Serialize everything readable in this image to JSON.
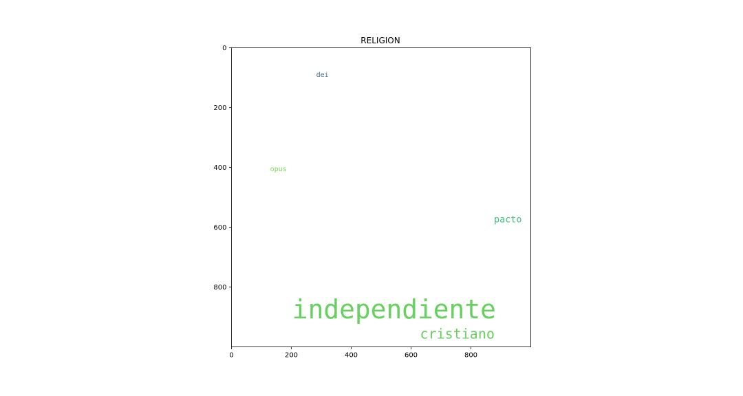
{
  "chart_data": {
    "type": "wordcloud",
    "title": "RELIGION",
    "xlabel": "",
    "ylabel": "",
    "xlim": [
      0,
      1000
    ],
    "ylim": [
      1000,
      0
    ],
    "y_inverted": true,
    "grid": false,
    "x_ticks": [
      0,
      200,
      400,
      600,
      800
    ],
    "y_ticks": [
      0,
      200,
      400,
      600,
      800
    ],
    "words": [
      {
        "text": "dei",
        "x": 283,
        "y": 83,
        "size": 23,
        "color": "#3b6e92"
      },
      {
        "text": "opus",
        "x": 129,
        "y": 398,
        "size": 23,
        "color": "#7ed957"
      },
      {
        "text": "pacto",
        "x": 877,
        "y": 562,
        "size": 31,
        "color": "#3fbf7f"
      },
      {
        "text": "independiente",
        "x": 203,
        "y": 840,
        "size": 87,
        "color": "#66d15f"
      },
      {
        "text": "cristiano",
        "x": 630,
        "y": 937,
        "size": 46,
        "color": "#66d15f"
      }
    ]
  }
}
